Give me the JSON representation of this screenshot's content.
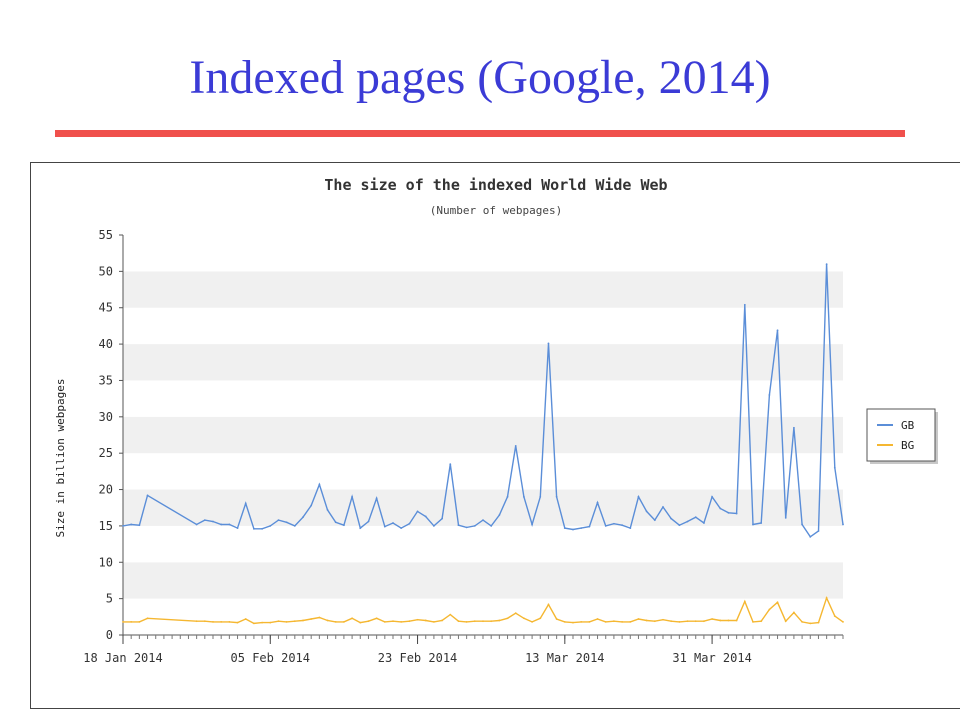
{
  "slide": {
    "title": "Indexed pages (Google, 2014)",
    "rule_color": "#f0504c",
    "title_color": "#3b3bd6"
  },
  "chart_data": {
    "type": "line",
    "title": "The size of the indexed World Wide Web",
    "subtitle": "(Number of webpages)",
    "xlabel": "",
    "ylabel": "Size in billion webpages",
    "ylim": [
      0,
      55
    ],
    "yticks": [
      0,
      5,
      10,
      15,
      20,
      25,
      30,
      35,
      40,
      45,
      50,
      55
    ],
    "xlim": [
      "2014-01-18",
      "2014-04-16"
    ],
    "xticks": [
      {
        "date": "2014-01-18",
        "label": "18 Jan 2014"
      },
      {
        "date": "2014-02-05",
        "label": "05 Feb 2014"
      },
      {
        "date": "2014-02-23",
        "label": "23 Feb 2014"
      },
      {
        "date": "2014-03-13",
        "label": "13 Mar 2014"
      },
      {
        "date": "2014-03-31",
        "label": "31 Mar 2014"
      }
    ],
    "grid": "alternating horizontal bands",
    "legend_position": "right",
    "series": [
      {
        "name": "GB",
        "color": "#5b8ed8",
        "points": [
          [
            "2014-01-18",
            15.0
          ],
          [
            "2014-01-19",
            15.2
          ],
          [
            "2014-01-20",
            15.1
          ],
          [
            "2014-01-21",
            19.2
          ],
          [
            "2014-01-27",
            15.2
          ],
          [
            "2014-01-28",
            15.8
          ],
          [
            "2014-01-29",
            15.6
          ],
          [
            "2014-01-30",
            15.2
          ],
          [
            "2014-01-31",
            15.2
          ],
          [
            "2014-02-01",
            14.7
          ],
          [
            "2014-02-02",
            18.1
          ],
          [
            "2014-02-03",
            14.6
          ],
          [
            "2014-02-04",
            14.6
          ],
          [
            "2014-02-05",
            15.0
          ],
          [
            "2014-02-06",
            15.8
          ],
          [
            "2014-02-07",
            15.5
          ],
          [
            "2014-02-08",
            15.0
          ],
          [
            "2014-02-09",
            16.2
          ],
          [
            "2014-02-10",
            17.8
          ],
          [
            "2014-02-11",
            20.7
          ],
          [
            "2014-02-12",
            17.2
          ],
          [
            "2014-02-13",
            15.5
          ],
          [
            "2014-02-14",
            15.1
          ],
          [
            "2014-02-15",
            19.0
          ],
          [
            "2014-02-16",
            14.7
          ],
          [
            "2014-02-17",
            15.6
          ],
          [
            "2014-02-18",
            18.8
          ],
          [
            "2014-02-19",
            14.9
          ],
          [
            "2014-02-20",
            15.4
          ],
          [
            "2014-02-21",
            14.7
          ],
          [
            "2014-02-22",
            15.3
          ],
          [
            "2014-02-23",
            17.0
          ],
          [
            "2014-02-24",
            16.3
          ],
          [
            "2014-02-25",
            15.0
          ],
          [
            "2014-02-26",
            16.0
          ],
          [
            "2014-02-27",
            23.5
          ],
          [
            "2014-02-28",
            15.1
          ],
          [
            "2014-03-01",
            14.8
          ],
          [
            "2014-03-02",
            15.0
          ],
          [
            "2014-03-03",
            15.8
          ],
          [
            "2014-03-04",
            15.0
          ],
          [
            "2014-03-05",
            16.5
          ],
          [
            "2014-03-06",
            19.0
          ],
          [
            "2014-03-07",
            26.0
          ],
          [
            "2014-03-08",
            19.0
          ],
          [
            "2014-03-09",
            15.2
          ],
          [
            "2014-03-10",
            19.0
          ],
          [
            "2014-03-11",
            40.1
          ],
          [
            "2014-03-12",
            19.0
          ],
          [
            "2014-03-13",
            14.7
          ],
          [
            "2014-03-14",
            14.5
          ],
          [
            "2014-03-15",
            14.7
          ],
          [
            "2014-03-16",
            14.9
          ],
          [
            "2014-03-17",
            18.2
          ],
          [
            "2014-03-18",
            15.0
          ],
          [
            "2014-03-19",
            15.3
          ],
          [
            "2014-03-20",
            15.1
          ],
          [
            "2014-03-21",
            14.7
          ],
          [
            "2014-03-22",
            19.0
          ],
          [
            "2014-03-23",
            17.0
          ],
          [
            "2014-03-24",
            15.8
          ],
          [
            "2014-03-25",
            17.6
          ],
          [
            "2014-03-26",
            16.0
          ],
          [
            "2014-03-27",
            15.1
          ],
          [
            "2014-03-28",
            15.6
          ],
          [
            "2014-03-29",
            16.2
          ],
          [
            "2014-03-30",
            15.4
          ],
          [
            "2014-03-31",
            19.0
          ],
          [
            "2014-04-01",
            17.4
          ],
          [
            "2014-04-02",
            16.8
          ],
          [
            "2014-04-03",
            16.7
          ],
          [
            "2014-04-04",
            45.4
          ],
          [
            "2014-04-05",
            15.2
          ],
          [
            "2014-04-06",
            15.4
          ],
          [
            "2014-04-07",
            33.0
          ],
          [
            "2014-04-08",
            41.9
          ],
          [
            "2014-04-09",
            16.1
          ],
          [
            "2014-04-10",
            28.5
          ],
          [
            "2014-04-11",
            15.2
          ],
          [
            "2014-04-12",
            13.5
          ],
          [
            "2014-04-13",
            14.3
          ],
          [
            "2014-04-14",
            51.0
          ],
          [
            "2014-04-15",
            23.0
          ],
          [
            "2014-04-16",
            15.2
          ]
        ]
      },
      {
        "name": "BG",
        "color": "#f5b731",
        "points": [
          [
            "2014-01-18",
            1.8
          ],
          [
            "2014-01-19",
            1.8
          ],
          [
            "2014-01-20",
            1.8
          ],
          [
            "2014-01-21",
            2.3
          ],
          [
            "2014-01-27",
            1.9
          ],
          [
            "2014-01-28",
            1.9
          ],
          [
            "2014-01-29",
            1.8
          ],
          [
            "2014-01-30",
            1.8
          ],
          [
            "2014-01-31",
            1.8
          ],
          [
            "2014-02-01",
            1.7
          ],
          [
            "2014-02-02",
            2.2
          ],
          [
            "2014-02-03",
            1.6
          ],
          [
            "2014-02-04",
            1.7
          ],
          [
            "2014-02-05",
            1.7
          ],
          [
            "2014-02-06",
            1.9
          ],
          [
            "2014-02-07",
            1.8
          ],
          [
            "2014-02-08",
            1.9
          ],
          [
            "2014-02-09",
            2.0
          ],
          [
            "2014-02-10",
            2.2
          ],
          [
            "2014-02-11",
            2.4
          ],
          [
            "2014-02-12",
            2.0
          ],
          [
            "2014-02-13",
            1.8
          ],
          [
            "2014-02-14",
            1.8
          ],
          [
            "2014-02-15",
            2.3
          ],
          [
            "2014-02-16",
            1.7
          ],
          [
            "2014-02-17",
            1.9
          ],
          [
            "2014-02-18",
            2.3
          ],
          [
            "2014-02-19",
            1.8
          ],
          [
            "2014-02-20",
            1.9
          ],
          [
            "2014-02-21",
            1.8
          ],
          [
            "2014-02-22",
            1.9
          ],
          [
            "2014-02-23",
            2.1
          ],
          [
            "2014-02-24",
            2.0
          ],
          [
            "2014-02-25",
            1.8
          ],
          [
            "2014-02-26",
            2.0
          ],
          [
            "2014-02-27",
            2.8
          ],
          [
            "2014-02-28",
            1.9
          ],
          [
            "2014-03-01",
            1.8
          ],
          [
            "2014-03-02",
            1.9
          ],
          [
            "2014-03-03",
            1.9
          ],
          [
            "2014-03-04",
            1.9
          ],
          [
            "2014-03-05",
            2.0
          ],
          [
            "2014-03-06",
            2.3
          ],
          [
            "2014-03-07",
            3.0
          ],
          [
            "2014-03-08",
            2.3
          ],
          [
            "2014-03-09",
            1.8
          ],
          [
            "2014-03-10",
            2.3
          ],
          [
            "2014-03-11",
            4.2
          ],
          [
            "2014-03-12",
            2.2
          ],
          [
            "2014-03-13",
            1.8
          ],
          [
            "2014-03-14",
            1.7
          ],
          [
            "2014-03-15",
            1.8
          ],
          [
            "2014-03-16",
            1.8
          ],
          [
            "2014-03-17",
            2.2
          ],
          [
            "2014-03-18",
            1.8
          ],
          [
            "2014-03-19",
            1.9
          ],
          [
            "2014-03-20",
            1.8
          ],
          [
            "2014-03-21",
            1.8
          ],
          [
            "2014-03-22",
            2.2
          ],
          [
            "2014-03-23",
            2.0
          ],
          [
            "2014-03-24",
            1.9
          ],
          [
            "2014-03-25",
            2.1
          ],
          [
            "2014-03-26",
            1.9
          ],
          [
            "2014-03-27",
            1.8
          ],
          [
            "2014-03-28",
            1.9
          ],
          [
            "2014-03-29",
            1.9
          ],
          [
            "2014-03-30",
            1.9
          ],
          [
            "2014-03-31",
            2.2
          ],
          [
            "2014-04-01",
            2.0
          ],
          [
            "2014-04-02",
            2.0
          ],
          [
            "2014-04-03",
            2.0
          ],
          [
            "2014-04-04",
            4.6
          ],
          [
            "2014-04-05",
            1.8
          ],
          [
            "2014-04-06",
            1.9
          ],
          [
            "2014-04-07",
            3.5
          ],
          [
            "2014-04-08",
            4.5
          ],
          [
            "2014-04-09",
            1.9
          ],
          [
            "2014-04-10",
            3.1
          ],
          [
            "2014-04-11",
            1.8
          ],
          [
            "2014-04-12",
            1.6
          ],
          [
            "2014-04-13",
            1.7
          ],
          [
            "2014-04-14",
            5.1
          ],
          [
            "2014-04-15",
            2.6
          ],
          [
            "2014-04-16",
            1.8
          ]
        ]
      }
    ]
  }
}
